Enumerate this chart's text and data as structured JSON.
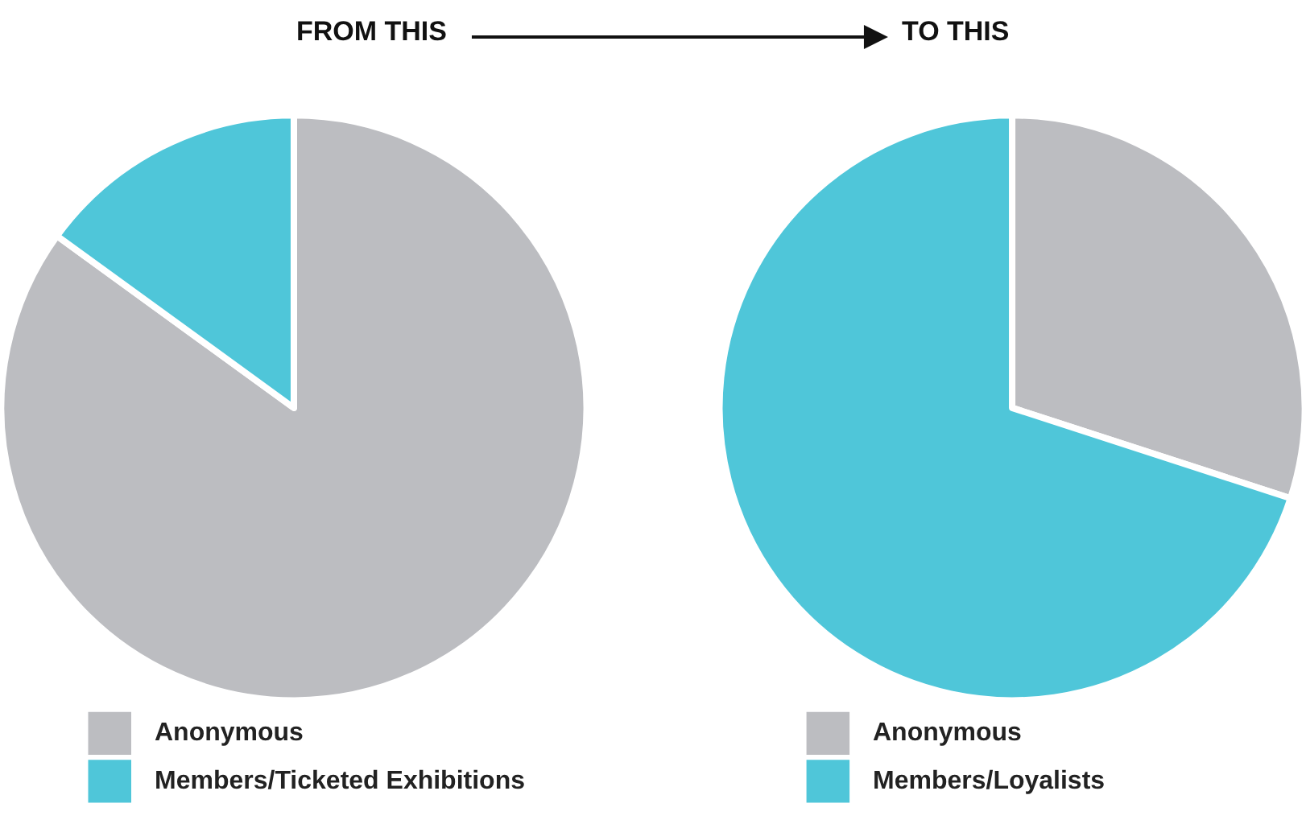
{
  "chart_data": [
    {
      "type": "pie",
      "title": "FROM THIS",
      "categories": [
        "Anonymous",
        "Members/Ticketed Exhibitions"
      ],
      "values": [
        85,
        15
      ],
      "colors": [
        "#bcbdc1",
        "#4fc6d9"
      ],
      "legend": "bottom"
    },
    {
      "type": "pie",
      "title": "TO THIS",
      "categories": [
        "Anonymous",
        "Members/Loyalists"
      ],
      "values": [
        30,
        70
      ],
      "colors": [
        "#bcbdc1",
        "#4fc6d9"
      ],
      "legend": "bottom"
    }
  ]
}
